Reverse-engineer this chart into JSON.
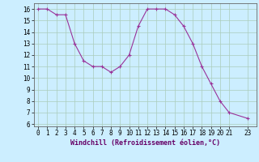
{
  "x": [
    0,
    1,
    2,
    3,
    4,
    5,
    6,
    7,
    8,
    9,
    10,
    11,
    12,
    13,
    14,
    15,
    16,
    17,
    18,
    19,
    20,
    21,
    23
  ],
  "y": [
    16,
    16,
    15.5,
    15.5,
    13,
    11.5,
    11,
    11,
    10.5,
    11,
    12,
    14.5,
    16,
    16,
    16,
    15.5,
    14.5,
    13,
    11,
    9.5,
    8,
    7,
    6.5
  ],
  "xlim": [
    -0.5,
    24.0
  ],
  "ylim": [
    5.8,
    16.5
  ],
  "xticks": [
    0,
    1,
    2,
    3,
    4,
    5,
    6,
    7,
    8,
    9,
    10,
    11,
    12,
    13,
    14,
    15,
    16,
    17,
    18,
    19,
    20,
    21,
    23
  ],
  "yticks": [
    6,
    7,
    8,
    9,
    10,
    11,
    12,
    13,
    14,
    15,
    16
  ],
  "xlabel": "Windchill (Refroidissement éolien,°C)",
  "line_color": "#993399",
  "marker_color": "#993399",
  "bg_color": "#cceeff",
  "grid_color": "#aaccbb",
  "label_fontsize": 6.0,
  "tick_fontsize": 5.5
}
